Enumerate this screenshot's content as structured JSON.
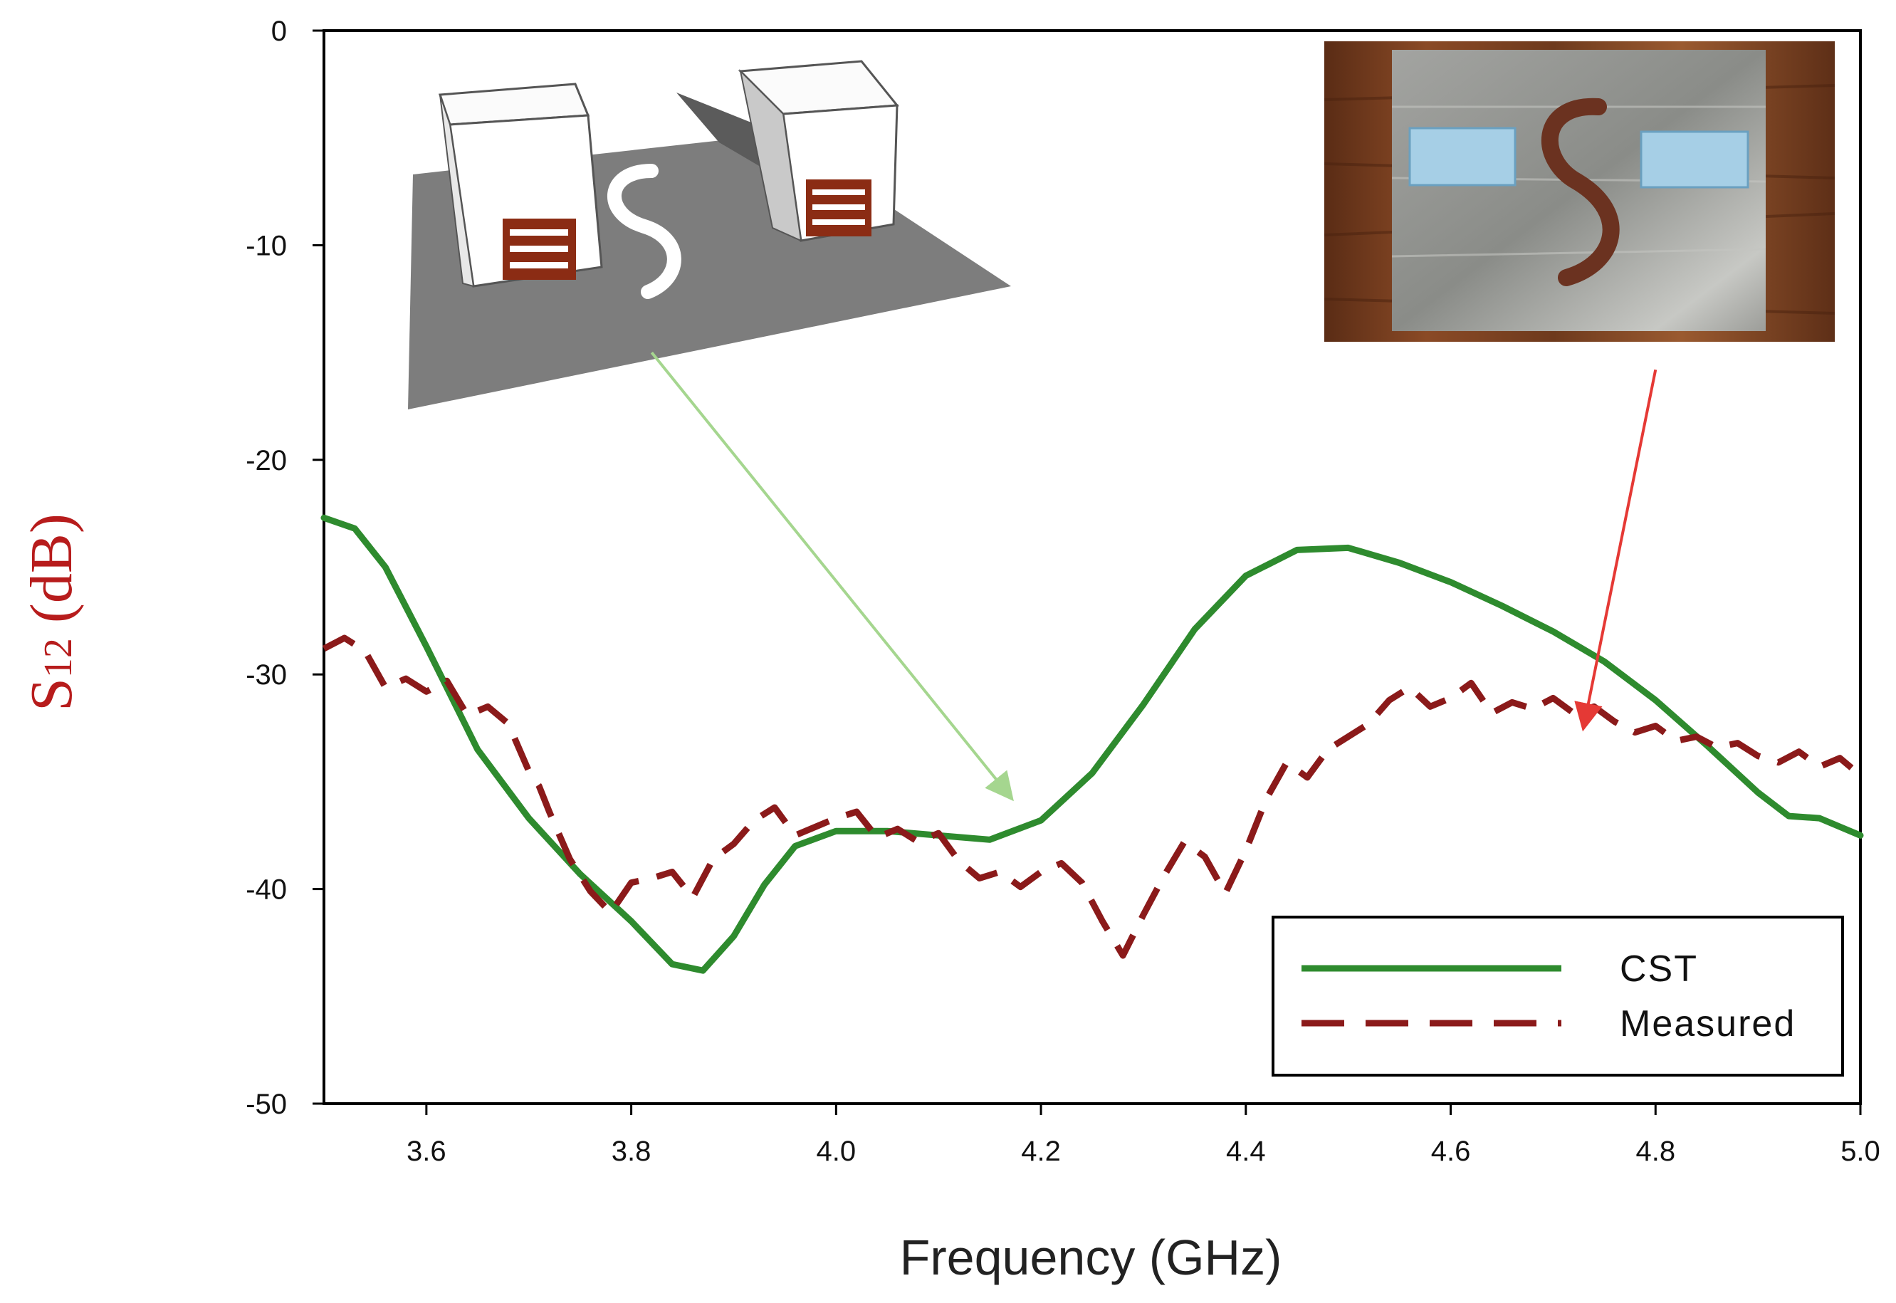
{
  "chart_data": {
    "type": "line",
    "xlabel": "Frequency (GHz)",
    "ylabel_main": "S",
    "ylabel_sub": "12",
    "ylabel_unit": " (dB)",
    "xlim": [
      3.5,
      5.0
    ],
    "ylim": [
      -50,
      0
    ],
    "xticks": [
      3.6,
      3.8,
      4.0,
      4.2,
      4.4,
      4.6,
      4.8,
      5.0
    ],
    "xtick_labels": [
      "3.6",
      "3.8",
      "4.0",
      "4.2",
      "4.4",
      "4.6",
      "4.8",
      "5.0"
    ],
    "yticks": [
      0,
      -10,
      -20,
      -30,
      -40,
      -50
    ],
    "ytick_labels": [
      "0",
      "-10",
      "-20",
      "-30",
      "-40",
      "-50"
    ],
    "grid": false,
    "legend_position": "bottom-right",
    "series": [
      {
        "name": "CST",
        "color": "#2e8b2e",
        "style": "solid",
        "x": [
          3.5,
          3.53,
          3.56,
          3.6,
          3.65,
          3.7,
          3.75,
          3.8,
          3.84,
          3.87,
          3.9,
          3.93,
          3.96,
          4.0,
          4.05,
          4.1,
          4.15,
          4.2,
          4.25,
          4.3,
          4.35,
          4.4,
          4.45,
          4.5,
          4.55,
          4.6,
          4.65,
          4.7,
          4.75,
          4.8,
          4.85,
          4.9,
          4.93,
          4.96,
          5.0
        ],
        "y": [
          -22.7,
          -23.2,
          -25,
          -28.7,
          -33.5,
          -36.7,
          -39.3,
          -41.5,
          -43.5,
          -43.8,
          -42.2,
          -39.8,
          -38,
          -37.3,
          -37.3,
          -37.5,
          -37.7,
          -36.8,
          -34.6,
          -31.4,
          -27.9,
          -25.4,
          -24.2,
          -24.1,
          -24.8,
          -25.7,
          -26.8,
          -28,
          -29.4,
          -31.2,
          -33.3,
          -35.5,
          -36.6,
          -36.7,
          -37.5
        ]
      },
      {
        "name": "Measured",
        "color": "#8b1a1a",
        "style": "dashed",
        "x": [
          3.5,
          3.52,
          3.54,
          3.56,
          3.58,
          3.6,
          3.62,
          3.64,
          3.66,
          3.68,
          3.7,
          3.71,
          3.72,
          3.74,
          3.76,
          3.78,
          3.8,
          3.82,
          3.84,
          3.86,
          3.88,
          3.9,
          3.92,
          3.94,
          3.96,
          3.98,
          4.0,
          4.02,
          4.04,
          4.06,
          4.08,
          4.1,
          4.12,
          4.14,
          4.16,
          4.18,
          4.2,
          4.22,
          4.24,
          4.26,
          4.28,
          4.3,
          4.32,
          4.34,
          4.36,
          4.38,
          4.4,
          4.42,
          4.44,
          4.46,
          4.48,
          4.5,
          4.52,
          4.54,
          4.56,
          4.58,
          4.6,
          4.62,
          4.64,
          4.66,
          4.68,
          4.7,
          4.72,
          4.74,
          4.76,
          4.78,
          4.8,
          4.82,
          4.84,
          4.86,
          4.88,
          4.9,
          4.92,
          4.94,
          4.96,
          4.98,
          5.0
        ],
        "y": [
          -28.8,
          -28.3,
          -28.9,
          -30.6,
          -30.2,
          -30.8,
          -30.3,
          -31.9,
          -31.5,
          -32.3,
          -34.5,
          -35.2,
          -36.4,
          -38.6,
          -40.1,
          -41.1,
          -39.7,
          -39.5,
          -39.2,
          -40.4,
          -38.6,
          -37.9,
          -36.8,
          -36.2,
          -37.5,
          -37.1,
          -36.7,
          -36.4,
          -37.6,
          -37.2,
          -37.8,
          -37.4,
          -38.7,
          -39.5,
          -39.2,
          -39.9,
          -39.2,
          -38.8,
          -39.7,
          -41.5,
          -43.1,
          -41.2,
          -39.4,
          -37.8,
          -38.5,
          -40.2,
          -38.2,
          -35.8,
          -34.1,
          -34.8,
          -33.5,
          -32.9,
          -32.3,
          -31.2,
          -30.6,
          -31.5,
          -31.1,
          -30.4,
          -31.8,
          -31.3,
          -31.6,
          -31.1,
          -31.8,
          -31.5,
          -32.2,
          -32.7,
          -32.4,
          -33.1,
          -32.9,
          -33.4,
          -33.2,
          -33.8,
          -34.1,
          -33.6,
          -34.3,
          -33.9,
          -34.7
        ]
      }
    ],
    "annotations": [
      {
        "kind": "arrow",
        "color": "#a5d68f",
        "from": [
          3.82,
          -15
        ],
        "to": [
          4.17,
          -35.7
        ]
      },
      {
        "kind": "arrow",
        "color": "#e53935",
        "from": [
          4.8,
          -15.8
        ],
        "to": [
          4.73,
          -32.4
        ]
      }
    ],
    "insets": [
      {
        "name": "simulation-model-inset",
        "kind": "3d-render"
      },
      {
        "name": "fabricated-prototype-inset",
        "kind": "photo"
      }
    ]
  }
}
